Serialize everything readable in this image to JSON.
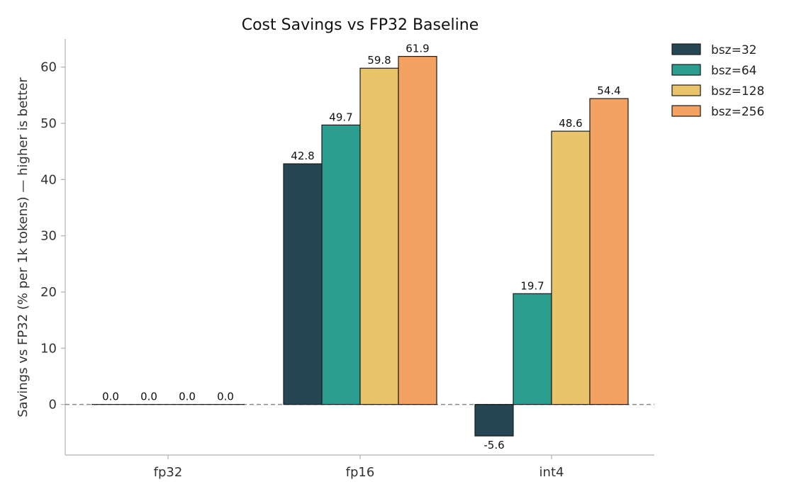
{
  "chart_data": {
    "type": "bar",
    "title": "Cost Savings vs FP32 Baseline",
    "xlabel": "",
    "ylabel": "Savings vs FP32 (% per 1k tokens)  — higher is better",
    "categories": [
      "fp32",
      "fp16",
      "int4"
    ],
    "series": [
      {
        "name": "bsz=32",
        "color": "#264653",
        "values": [
          0.0,
          42.8,
          -5.6
        ]
      },
      {
        "name": "bsz=64",
        "color": "#2a9d8f",
        "values": [
          0.0,
          49.7,
          19.7
        ]
      },
      {
        "name": "bsz=128",
        "color": "#e9c46a",
        "values": [
          0.0,
          59.8,
          48.6
        ]
      },
      {
        "name": "bsz=256",
        "color": "#f4a261",
        "values": [
          0.0,
          61.9,
          54.4
        ]
      }
    ],
    "value_labels": [
      [
        "0.0",
        "42.8",
        "-5.6"
      ],
      [
        "0.0",
        "49.7",
        "19.7"
      ],
      [
        "0.0",
        "59.8",
        "48.6"
      ],
      [
        "0.0",
        "61.9",
        "54.4"
      ]
    ],
    "ylim": [
      -9,
      65
    ],
    "yticks": [
      0,
      10,
      20,
      30,
      40,
      50,
      60
    ],
    "ytick_labels": [
      "0",
      "10",
      "20",
      "30",
      "40",
      "50",
      "60"
    ],
    "reference_line": {
      "y": 0,
      "style": "dashed",
      "color": "#888888"
    },
    "legend": {
      "placement": "top-right, outside plot area"
    },
    "grid": false
  }
}
